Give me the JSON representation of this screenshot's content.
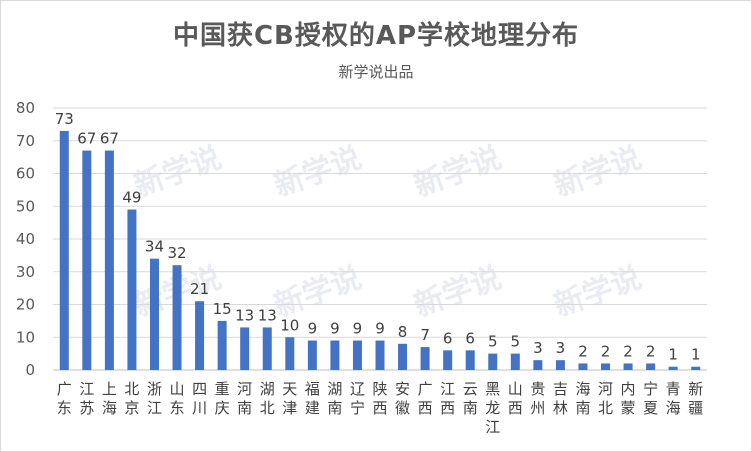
{
  "chart_data": {
    "type": "bar",
    "title": "中国获CB授权的AP学校地理分布",
    "subtitle": "新学说出品",
    "watermark": "新学说",
    "categories": [
      "广东",
      "江苏",
      "上海",
      "北京",
      "浙江",
      "山东",
      "四川",
      "重庆",
      "河南",
      "湖北",
      "天津",
      "福建",
      "湖南",
      "辽宁",
      "陕西",
      "安徽",
      "广西",
      "江西",
      "云南",
      "黑龙江",
      "山西",
      "贵州",
      "吉林",
      "海南",
      "河北",
      "内蒙",
      "宁夏",
      "青海",
      "新疆"
    ],
    "values": [
      73,
      67,
      67,
      49,
      34,
      32,
      21,
      15,
      13,
      13,
      10,
      9,
      9,
      9,
      9,
      8,
      7,
      6,
      6,
      5,
      5,
      3,
      3,
      2,
      2,
      2,
      2,
      1,
      1
    ],
    "ylim": [
      0,
      80
    ],
    "yticks": [
      0,
      10,
      20,
      30,
      40,
      50,
      60,
      70,
      80
    ],
    "grid": true,
    "bar_color": "#4472c4",
    "grid_color": "#d9d9d9"
  }
}
